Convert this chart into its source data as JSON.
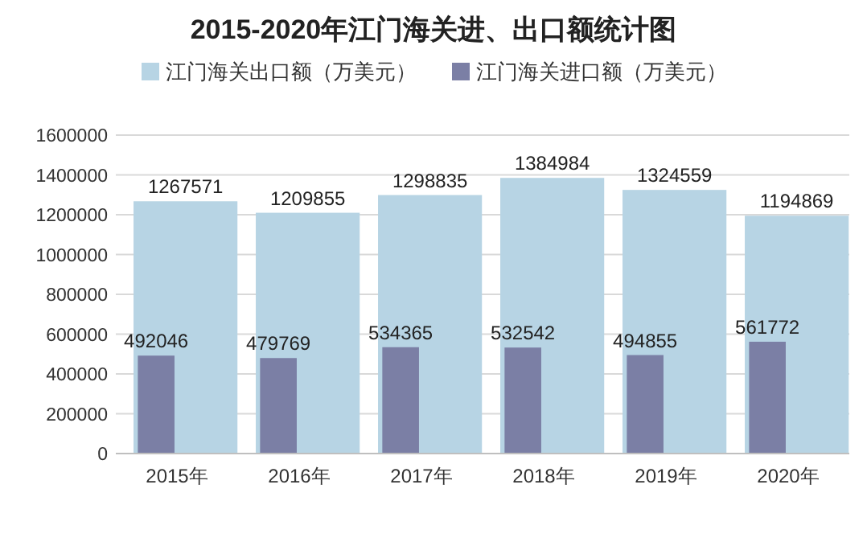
{
  "chart_data": {
    "type": "bar",
    "title": "2015-2020年江门海关进、出口额统计图",
    "categories": [
      "2015年",
      "2016年",
      "2017年",
      "2018年",
      "2019年",
      "2020年"
    ],
    "series": [
      {
        "name": "江门海关出口额（万美元）",
        "color": "#b7d4e4",
        "values": [
          1267571,
          1209855,
          1298835,
          1384984,
          1324559,
          1194869
        ]
      },
      {
        "name": "江门海关进口额（万美元）",
        "color": "#7b7fa5",
        "values": [
          492046,
          479769,
          534365,
          532542,
          494855,
          561772
        ]
      }
    ],
    "ylim": [
      0,
      1600000
    ],
    "yticks": [
      0,
      200000,
      400000,
      600000,
      800000,
      1000000,
      1200000,
      1400000,
      1600000
    ],
    "grid": "y",
    "legend": "top",
    "data_labels": true
  }
}
